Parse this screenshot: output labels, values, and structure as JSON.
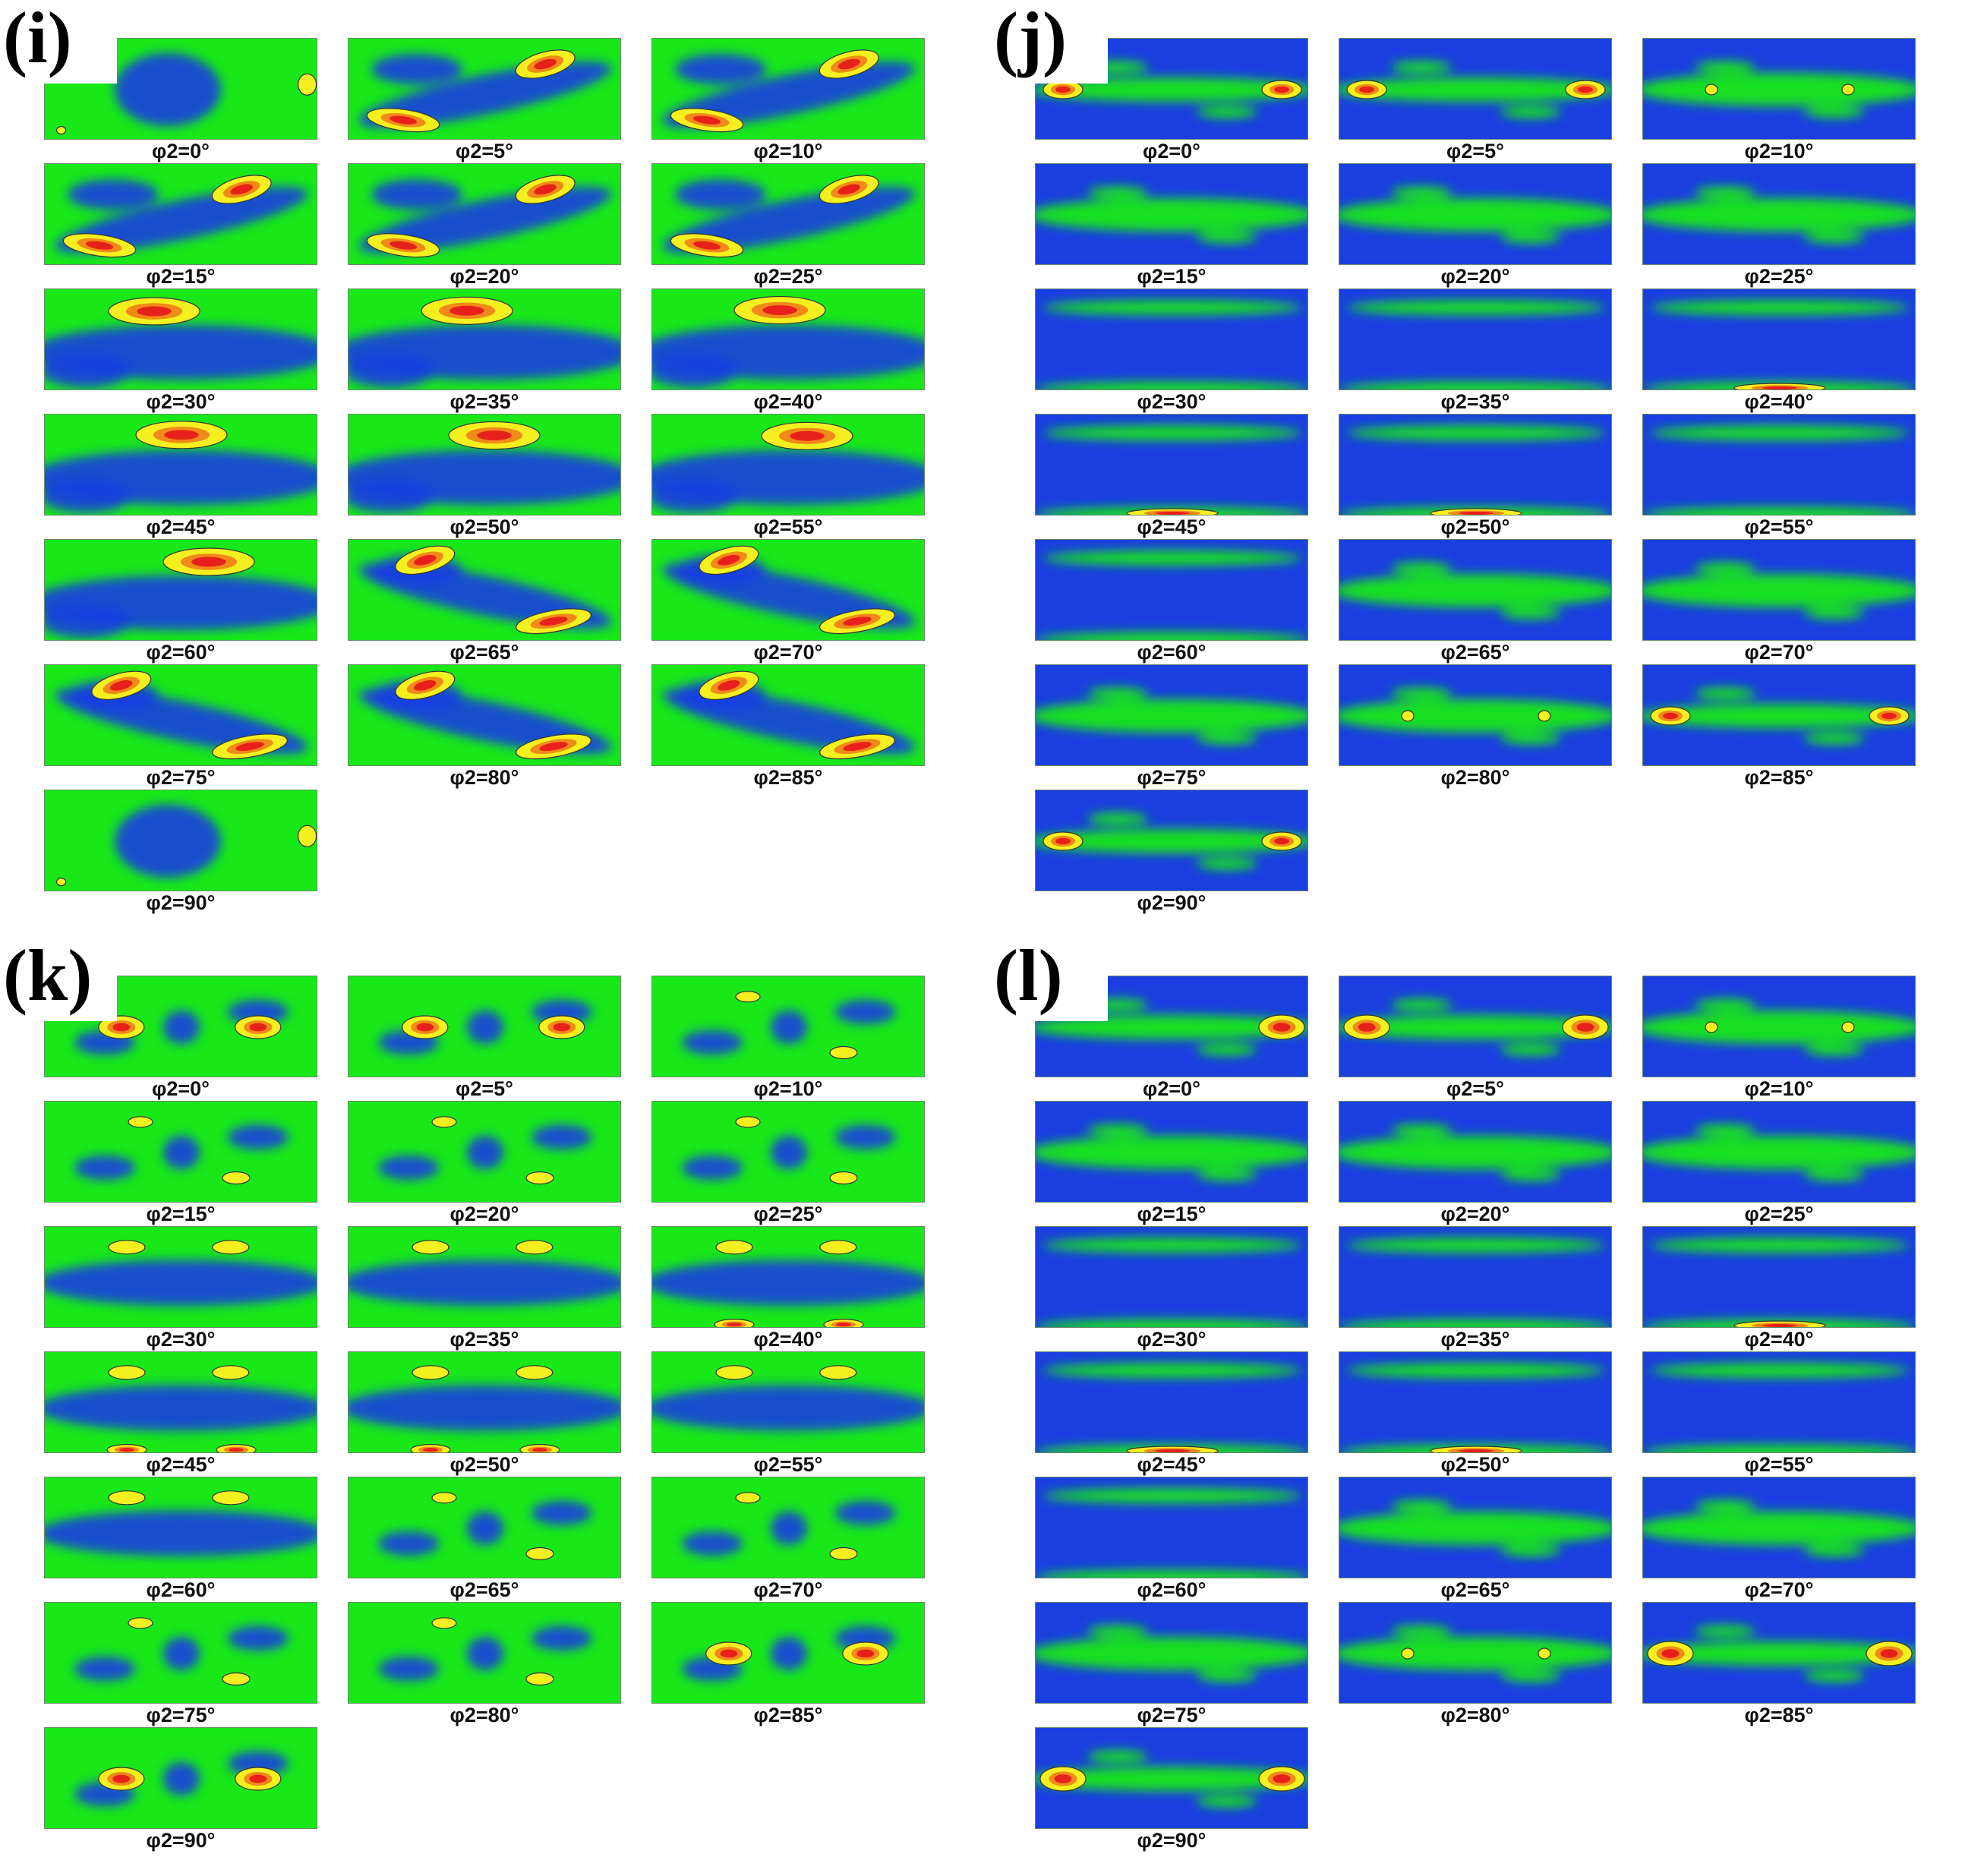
{
  "figure": {
    "panels": [
      {
        "id": "i",
        "label": "(i)",
        "base_color": "#18e818",
        "captions": [
          "φ2=0°",
          "φ2=5°",
          "φ2=10°",
          "φ2=15°",
          "φ2=20°",
          "φ2=25°",
          "φ2=30°",
          "φ2=35°",
          "φ2=40°",
          "φ2=45°",
          "φ2=50°",
          "φ2=55°",
          "φ2=60°",
          "φ2=65°",
          "φ2=70°",
          "φ2=75°",
          "φ2=80°",
          "φ2=85°",
          "φ2=90°"
        ]
      },
      {
        "id": "j",
        "label": "(j)",
        "base_color": "#1a3ee0",
        "captions": [
          "φ2=0°",
          "φ2=5°",
          "φ2=10°",
          "φ2=15°",
          "φ2=20°",
          "φ2=25°",
          "φ2=30°",
          "φ2=35°",
          "φ2=40°",
          "φ2=45°",
          "φ2=50°",
          "φ2=55°",
          "φ2=60°",
          "φ2=65°",
          "φ2=70°",
          "φ2=75°",
          "φ2=80°",
          "φ2=85°",
          "φ2=90°"
        ]
      },
      {
        "id": "k",
        "label": "(k)",
        "base_color": "#18e818",
        "captions": [
          "φ2=0°",
          "φ2=5°",
          "φ2=10°",
          "φ2=15°",
          "φ2=20°",
          "φ2=25°",
          "φ2=30°",
          "φ2=35°",
          "φ2=40°",
          "φ2=45°",
          "φ2=50°",
          "φ2=55°",
          "φ2=60°",
          "φ2=65°",
          "φ2=70°",
          "φ2=75°",
          "φ2=80°",
          "φ2=85°",
          "φ2=90°"
        ]
      },
      {
        "id": "l",
        "label": "(l)",
        "base_color": "#1a3ee0",
        "captions": [
          "φ2=0°",
          "φ2=5°",
          "φ2=10°",
          "φ2=15°",
          "φ2=20°",
          "φ2=25°",
          "φ2=30°",
          "φ2=35°",
          "φ2=40°",
          "φ2=45°",
          "φ2=50°",
          "φ2=55°",
          "φ2=60°",
          "φ2=65°",
          "φ2=70°",
          "φ2=75°",
          "φ2=80°",
          "φ2=85°",
          "φ2=90°"
        ]
      }
    ],
    "colors": {
      "low": "#1a3ee0",
      "mid": "#18e818",
      "high_yellow": "#f4f020",
      "high_red": "#e8201c"
    }
  }
}
